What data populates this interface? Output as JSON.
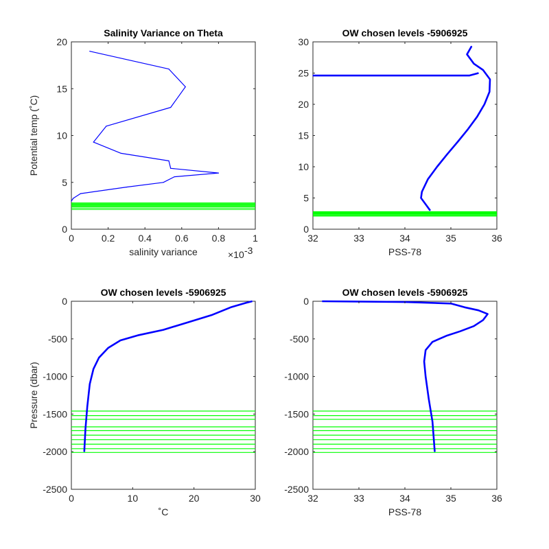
{
  "colors": {
    "profile": "#0000ff",
    "level": "#00ff00",
    "axis": "#262626",
    "background": "#ffffff"
  },
  "chart_data": [
    {
      "id": "salvar",
      "type": "line",
      "title": "Salinity Variance on Theta",
      "xlabel": "salinity variance",
      "x_exponent_label": "×10",
      "x_exponent_power": "-3",
      "ylabel": "Potential temp (˚C)",
      "xlim": [
        0,
        1
      ],
      "ylim": [
        0,
        20
      ],
      "xticks": [
        0,
        0.2,
        0.4,
        0.6,
        0.8,
        1
      ],
      "xtick_labels": [
        "0",
        "0.2",
        "0.4",
        "0.6",
        "0.8",
        "1"
      ],
      "yticks": [
        0,
        5,
        10,
        15,
        20
      ],
      "ytick_labels": [
        "0",
        "5",
        "10",
        "15",
        "20"
      ],
      "series": [
        {
          "values": [
            [
              0.1,
              19
            ],
            [
              0.53,
              17.1
            ],
            [
              0.62,
              15.2
            ],
            [
              0.54,
              13
            ],
            [
              0.19,
              11
            ],
            [
              0.12,
              9.3
            ],
            [
              0.27,
              8.1
            ],
            [
              0.53,
              7.3
            ],
            [
              0.54,
              6.5
            ],
            [
              0.8,
              6
            ],
            [
              0.56,
              5.6
            ],
            [
              0.5,
              5
            ],
            [
              0.3,
              4.5
            ],
            [
              0.05,
              3.8
            ],
            [
              0.01,
              3.3
            ],
            [
              0,
              3
            ]
          ]
        }
      ],
      "levels": [
        2.1,
        2.25,
        2.4,
        2.5,
        2.6,
        2.7,
        2.8
      ]
    },
    {
      "id": "theta-sal",
      "type": "line",
      "title": "OW chosen levels -5906925",
      "xlabel": "PSS-78",
      "ylabel": "",
      "xlim": [
        32,
        36
      ],
      "ylim": [
        0,
        30
      ],
      "xticks": [
        32,
        33,
        34,
        35,
        36
      ],
      "xtick_labels": [
        "32",
        "33",
        "34",
        "35",
        "36"
      ],
      "yticks": [
        0,
        5,
        10,
        15,
        20,
        25,
        30
      ],
      "ytick_labels": [
        "0",
        "5",
        "10",
        "15",
        "20",
        "25",
        "30"
      ],
      "series": [
        {
          "values": [
            [
              34.55,
              3
            ],
            [
              34.45,
              4
            ],
            [
              34.35,
              5
            ],
            [
              34.37,
              6
            ],
            [
              34.5,
              8
            ],
            [
              34.7,
              10
            ],
            [
              34.92,
              12
            ],
            [
              35.15,
              14
            ],
            [
              35.37,
              16
            ],
            [
              35.57,
              18
            ],
            [
              35.73,
              20
            ],
            [
              35.84,
              22
            ],
            [
              35.85,
              24
            ],
            [
              35.7,
              25.5
            ],
            [
              35.5,
              26.5
            ],
            [
              35.35,
              28
            ],
            [
              35.45,
              29.3
            ]
          ]
        },
        {
          "values": [
            [
              32,
              24.6
            ],
            [
              35.4,
              24.6
            ],
            [
              35.6,
              25
            ]
          ]
        }
      ],
      "levels": [
        2.1,
        2.25,
        2.4,
        2.5,
        2.6,
        2.7,
        2.8
      ]
    },
    {
      "id": "pres-temp",
      "type": "line",
      "title": "OW chosen levels -5906925",
      "xlabel": "˚C",
      "ylabel": "Pressure (dbar)",
      "xlim": [
        0,
        30
      ],
      "ylim": [
        -2500,
        0
      ],
      "xticks": [
        0,
        10,
        20,
        30
      ],
      "xtick_labels": [
        "0",
        "10",
        "20",
        "30"
      ],
      "yticks": [
        -2500,
        -2000,
        -1500,
        -1000,
        -500,
        0
      ],
      "ytick_labels": [
        "-2500",
        "-2000",
        "-1500",
        "-1000",
        "-500",
        "0"
      ],
      "series": [
        {
          "values": [
            [
              2.1,
              -2000
            ],
            [
              2.3,
              -1700
            ],
            [
              2.6,
              -1400
            ],
            [
              3,
              -1100
            ],
            [
              3.6,
              -900
            ],
            [
              4.5,
              -750
            ],
            [
              6,
              -620
            ],
            [
              8,
              -520
            ],
            [
              11,
              -450
            ],
            [
              15,
              -380
            ],
            [
              19,
              -280
            ],
            [
              23,
              -180
            ],
            [
              26,
              -80
            ],
            [
              28.5,
              -20
            ],
            [
              29.5,
              0
            ]
          ]
        }
      ],
      "levels": [
        -1460,
        -1520,
        -1570,
        -1670,
        -1720,
        -1780,
        -1840,
        -1900,
        -1960,
        -2010
      ]
    },
    {
      "id": "pres-sal",
      "type": "line",
      "title": "OW chosen levels -5906925",
      "xlabel": "PSS-78",
      "ylabel": "",
      "xlim": [
        32,
        36
      ],
      "ylim": [
        -2500,
        0
      ],
      "xticks": [
        32,
        33,
        34,
        35,
        36
      ],
      "xtick_labels": [
        "32",
        "33",
        "34",
        "35",
        "36"
      ],
      "yticks": [
        -2500,
        -2000,
        -1500,
        -1000,
        -500,
        0
      ],
      "ytick_labels": [
        "-2500",
        "-2000",
        "-1500",
        "-1000",
        "-500",
        "0"
      ],
      "series": [
        {
          "values": [
            [
              34.65,
              -2000
            ],
            [
              34.6,
              -1600
            ],
            [
              34.52,
              -1300
            ],
            [
              34.45,
              -1000
            ],
            [
              34.42,
              -800
            ],
            [
              34.45,
              -650
            ],
            [
              34.6,
              -540
            ],
            [
              34.9,
              -460
            ],
            [
              35.2,
              -400
            ],
            [
              35.5,
              -330
            ],
            [
              35.7,
              -250
            ],
            [
              35.8,
              -170
            ],
            [
              35.6,
              -120
            ],
            [
              35.3,
              -80
            ],
            [
              35,
              -30
            ],
            [
              34,
              -10
            ],
            [
              32.2,
              0
            ]
          ]
        }
      ],
      "levels": [
        -1460,
        -1520,
        -1570,
        -1670,
        -1720,
        -1780,
        -1840,
        -1900,
        -1960,
        -2010
      ]
    }
  ]
}
